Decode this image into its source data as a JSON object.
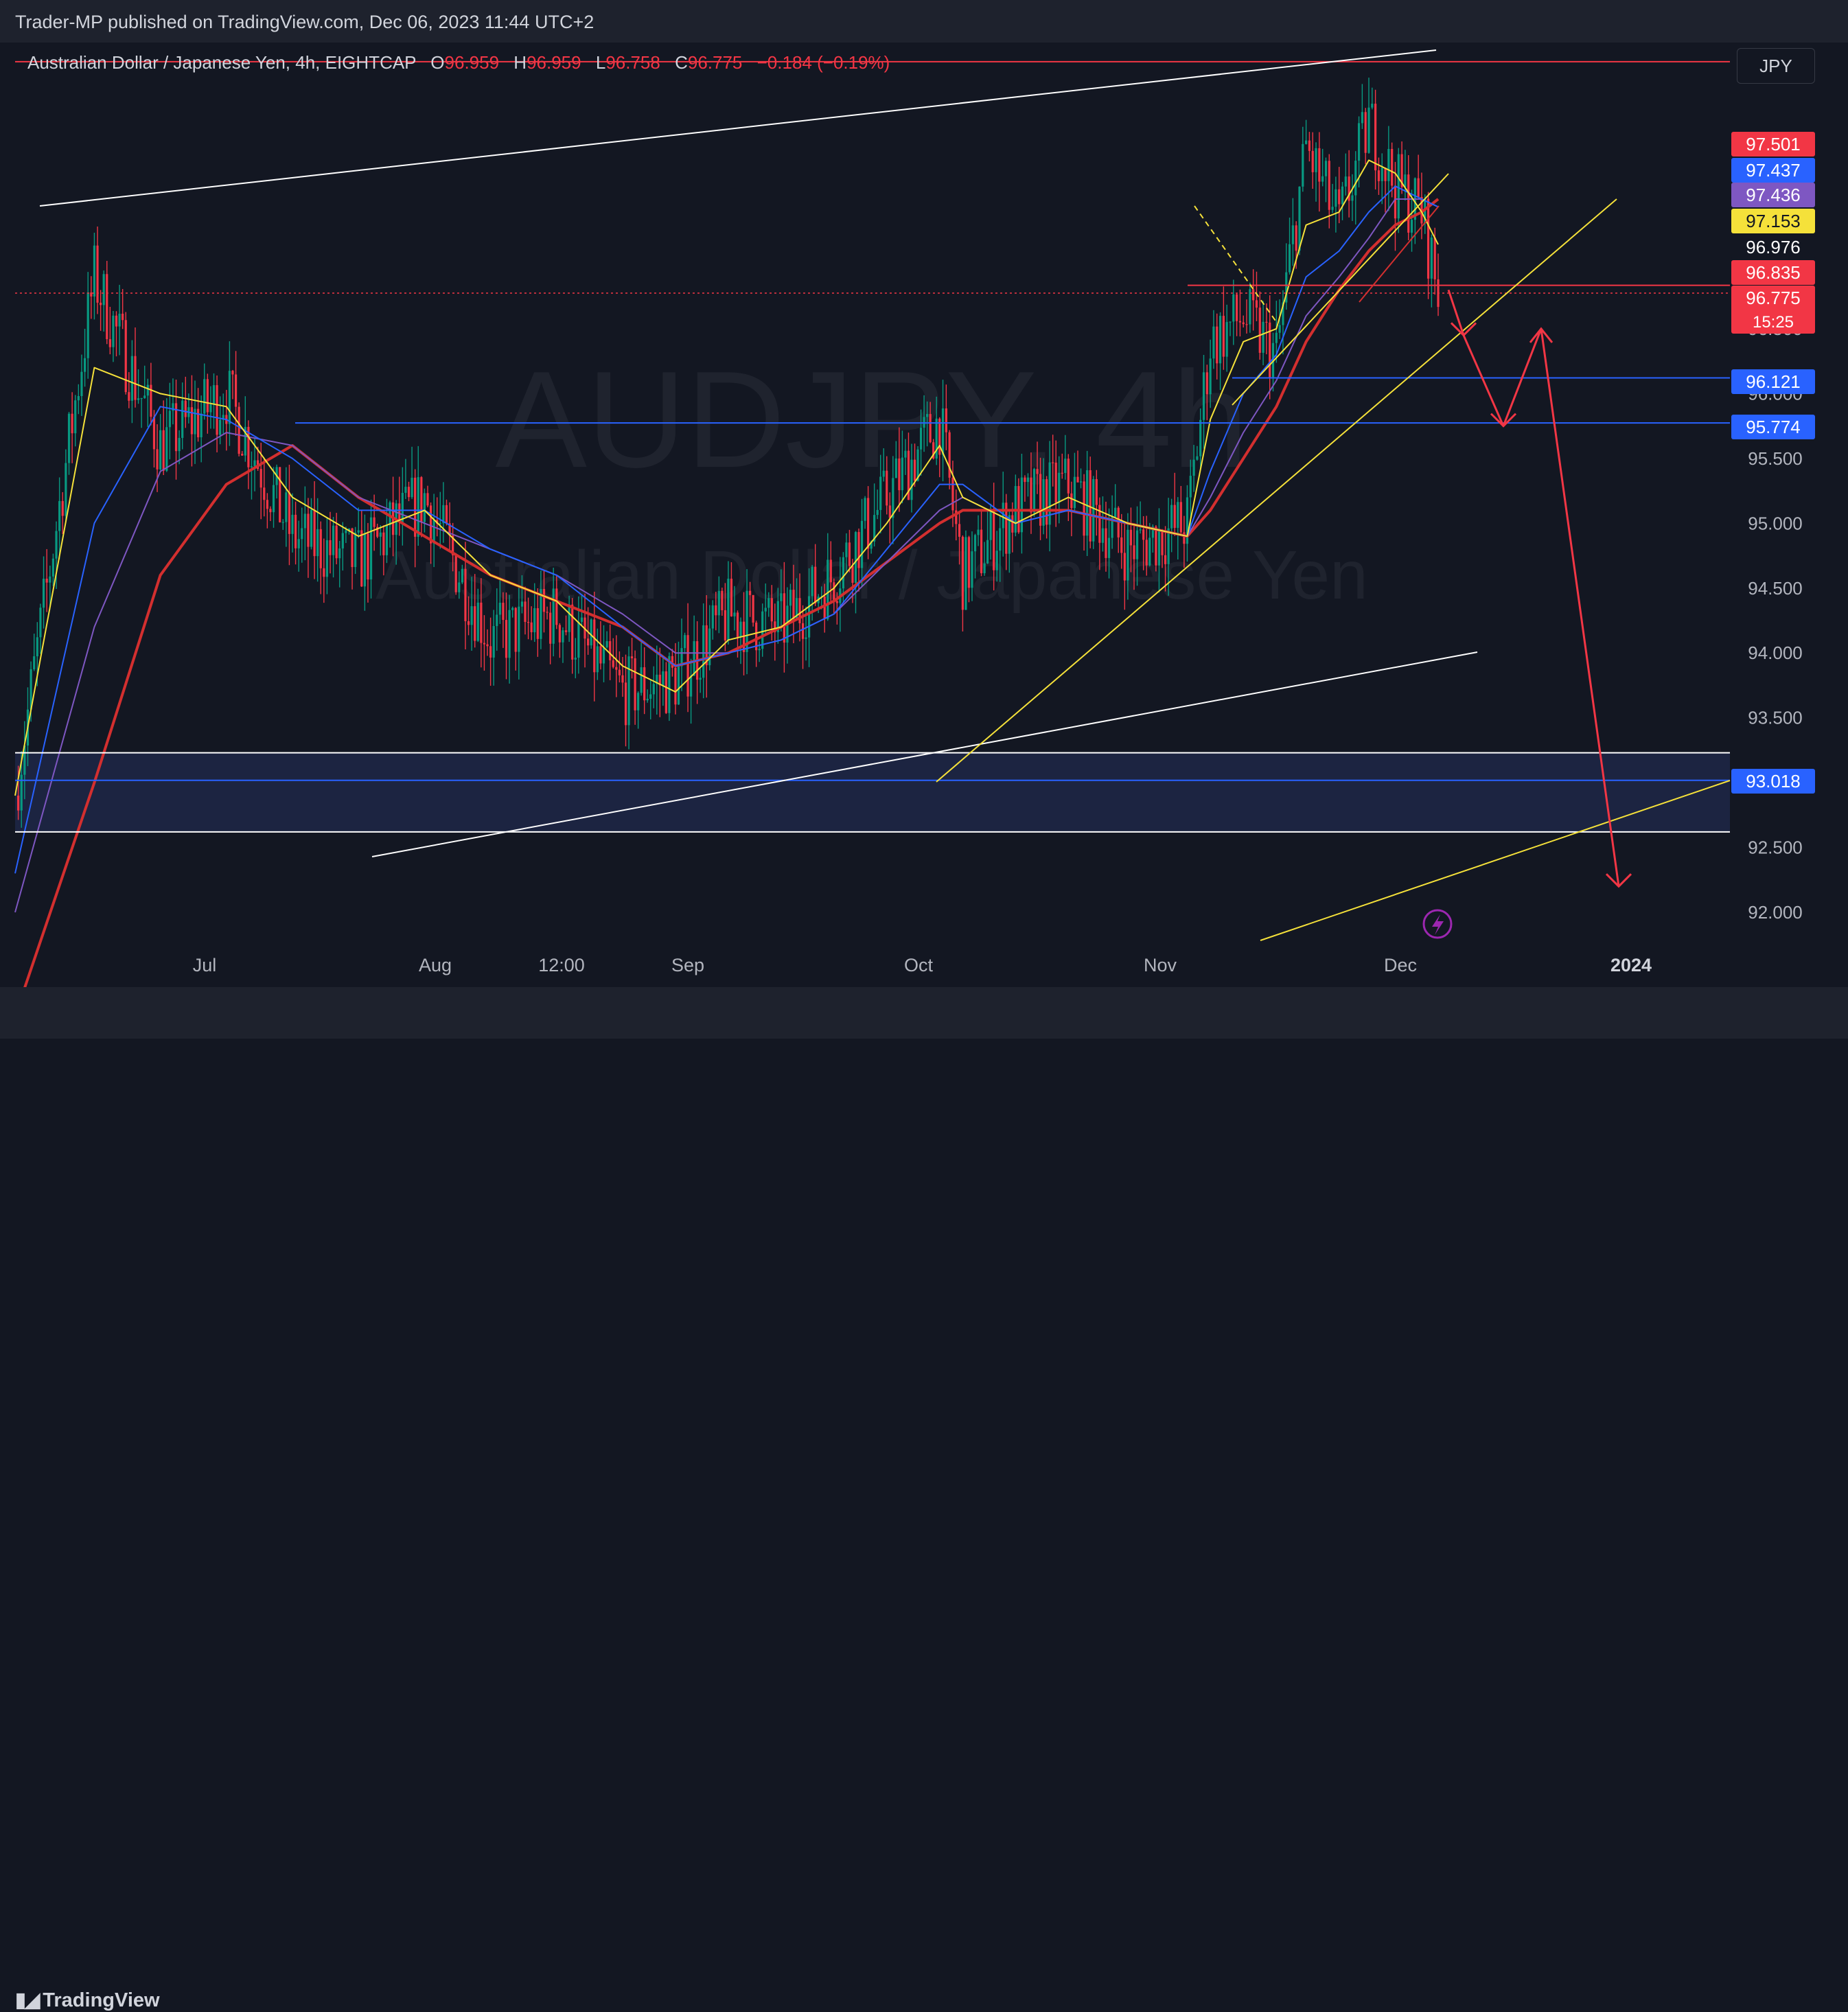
{
  "header": {
    "published": "Trader-MP published on TradingView.com, Dec 06, 2023 11:44 UTC+2"
  },
  "legend": {
    "symbol": "Australian Dollar / Japanese Yen, 4h, EIGHTCAP",
    "open_label": "O",
    "open": "96.959",
    "high_label": "H",
    "high": "96.959",
    "low_label": "L",
    "low": "96.758",
    "close_label": "C",
    "close": "96.775",
    "change": "−0.184 (−0.19%)"
  },
  "currency_button": "JPY",
  "watermark": {
    "ticker": "AUDJPY, 4h",
    "name": "Australian Dollar / Japanese Yen"
  },
  "footer": {
    "brand": "TradingView"
  },
  "colors": {
    "background": "#131722",
    "up": "#089981",
    "down": "#f23645",
    "ema_fast": "#f5e13a",
    "ema_mid": "#2962ff",
    "ema_slow": "#7e57c2",
    "ma_long": "#d32f2f",
    "support": "#2962ff",
    "trend": "#ffffff",
    "yellow_trend": "#f5e13a",
    "projection": "#f23645"
  },
  "chart_data": {
    "type": "candlestick",
    "symbol": "AUDJPY",
    "interval": "4h",
    "y_axis": {
      "ticks": [
        "92.000",
        "92.500",
        "93.000",
        "93.500",
        "94.000",
        "94.500",
        "95.000",
        "95.500",
        "96.000",
        "96.500"
      ],
      "range": [
        91.8,
        98.6
      ]
    },
    "x_axis": {
      "ticks": [
        {
          "label": "Jul",
          "bold": false
        },
        {
          "label": "Aug",
          "bold": false
        },
        {
          "label": "12:00",
          "bold": false
        },
        {
          "label": "Sep",
          "bold": false
        },
        {
          "label": "Oct",
          "bold": false
        },
        {
          "label": "Nov",
          "bold": false
        },
        {
          "label": "Dec",
          "bold": false
        },
        {
          "label": "2024",
          "bold": true
        }
      ]
    },
    "price_labels": [
      {
        "value": "97.501",
        "color": "#f23645",
        "text_color": "#ffffff"
      },
      {
        "value": "97.437",
        "color": "#2962ff",
        "text_color": "#ffffff"
      },
      {
        "value": "97.436",
        "color": "#7e57c2",
        "text_color": "#ffffff"
      },
      {
        "value": "97.153",
        "color": "#f5e13a",
        "text_color": "#131722"
      },
      {
        "value": "96.976",
        "color": "#131722",
        "text_color": "#ffffff"
      },
      {
        "value": "96.835",
        "color": "#f23645",
        "text_color": "#ffffff"
      },
      {
        "value": "96.775",
        "color": "#f23645",
        "text_color": "#ffffff",
        "countdown": "15:25"
      },
      {
        "value": "96.121",
        "color": "#2962ff",
        "text_color": "#ffffff"
      },
      {
        "value": "95.774",
        "color": "#2962ff",
        "text_color": "#ffffff"
      },
      {
        "value": "93.018",
        "color": "#2962ff",
        "text_color": "#ffffff"
      }
    ],
    "anchors": [
      {
        "t": "Jun 15",
        "close": 92.9,
        "ema20": 92.9,
        "ema50": 92.3,
        "ema100": 92.0,
        "ma200": 91.2
      },
      {
        "t": "Jun 22",
        "close": 96.9,
        "ema20": 96.2,
        "ema50": 95.0,
        "ema100": 94.2,
        "ma200": 93.0
      },
      {
        "t": "Jun 29",
        "close": 95.6,
        "ema20": 96.0,
        "ema50": 95.9,
        "ema100": 95.4,
        "ma200": 94.6
      },
      {
        "t": "Jul 6",
        "close": 96.0,
        "ema20": 95.9,
        "ema50": 95.8,
        "ema100": 95.7,
        "ma200": 95.3
      },
      {
        "t": "Jul 13",
        "close": 94.9,
        "ema20": 95.2,
        "ema50": 95.5,
        "ema100": 95.6,
        "ma200": 95.6
      },
      {
        "t": "Jul 20",
        "close": 94.7,
        "ema20": 94.9,
        "ema50": 95.1,
        "ema100": 95.2,
        "ma200": 95.2
      },
      {
        "t": "Jul 27",
        "close": 95.2,
        "ema20": 95.1,
        "ema50": 95.1,
        "ema100": 95.0,
        "ma200": 94.9
      },
      {
        "t": "Aug 3",
        "close": 94.1,
        "ema20": 94.6,
        "ema50": 94.8,
        "ema100": 94.8,
        "ma200": 94.6
      },
      {
        "t": "Aug 10",
        "close": 94.3,
        "ema20": 94.4,
        "ema50": 94.6,
        "ema100": 94.6,
        "ma200": 94.4
      },
      {
        "t": "Aug 17",
        "close": 93.7,
        "ema20": 93.9,
        "ema50": 94.2,
        "ema100": 94.3,
        "ma200": 94.2
      },
      {
        "t": "Aug 24",
        "close": 93.8,
        "ema20": 93.7,
        "ema50": 93.9,
        "ema100": 94.0,
        "ma200": 93.9
      },
      {
        "t": "Aug 31",
        "close": 94.3,
        "ema20": 94.1,
        "ema50": 94.0,
        "ema100": 94.0,
        "ma200": 94.0
      },
      {
        "t": "Sep 7",
        "close": 94.2,
        "ema20": 94.2,
        "ema50": 94.1,
        "ema100": 94.1,
        "ma200": 94.2
      },
      {
        "t": "Sep 14",
        "close": 94.6,
        "ema20": 94.5,
        "ema50": 94.3,
        "ema100": 94.3,
        "ma200": 94.4
      },
      {
        "t": "Sep 21",
        "close": 95.2,
        "ema20": 95.0,
        "ema50": 94.8,
        "ema100": 94.7,
        "ma200": 94.7
      },
      {
        "t": "Sep 28",
        "close": 95.8,
        "ema20": 95.6,
        "ema50": 95.3,
        "ema100": 95.1,
        "ma200": 95.0
      },
      {
        "t": "Oct 2",
        "close": 94.6,
        "ema20": 95.2,
        "ema50": 95.3,
        "ema100": 95.2,
        "ma200": 95.1
      },
      {
        "t": "Oct 9",
        "close": 95.1,
        "ema20": 95.0,
        "ema50": 95.0,
        "ema100": 95.0,
        "ma200": 95.1
      },
      {
        "t": "Oct 16",
        "close": 95.3,
        "ema20": 95.2,
        "ema50": 95.1,
        "ema100": 95.1,
        "ma200": 95.1
      },
      {
        "t": "Oct 23",
        "close": 94.8,
        "ema20": 95.0,
        "ema50": 95.0,
        "ema100": 95.0,
        "ma200": 95.0
      },
      {
        "t": "Oct 30",
        "close": 95.0,
        "ema20": 94.9,
        "ema50": 94.9,
        "ema100": 94.9,
        "ma200": 94.9
      },
      {
        "t": "Nov 2",
        "close": 96.4,
        "ema20": 95.8,
        "ema50": 95.4,
        "ema100": 95.2,
        "ma200": 95.1
      },
      {
        "t": "Nov 7",
        "close": 96.6,
        "ema20": 96.4,
        "ema50": 96.0,
        "ema100": 95.7,
        "ma200": 95.5
      },
      {
        "t": "Nov 12",
        "close": 96.3,
        "ema20": 96.5,
        "ema50": 96.3,
        "ema100": 96.1,
        "ma200": 95.9
      },
      {
        "t": "Nov 16",
        "close": 97.9,
        "ema20": 97.3,
        "ema50": 96.9,
        "ema100": 96.6,
        "ma200": 96.4
      },
      {
        "t": "Nov 21",
        "close": 97.3,
        "ema20": 97.4,
        "ema50": 97.1,
        "ema100": 96.9,
        "ma200": 96.8
      },
      {
        "t": "Nov 26",
        "close": 98.1,
        "ema20": 97.8,
        "ema50": 97.4,
        "ema100": 97.2,
        "ma200": 97.1
      },
      {
        "t": "Nov 30",
        "close": 97.6,
        "ema20": 97.7,
        "ema50": 97.6,
        "ema100": 97.5,
        "ma200": 97.3
      },
      {
        "t": "Dec 4",
        "close": 97.4,
        "ema20": 97.4,
        "ema50": 97.5,
        "ema100": 97.5,
        "ma200": 97.4
      },
      {
        "t": "Dec 6",
        "close": 96.78,
        "ema20": 97.15,
        "ema50": 97.44,
        "ema100": 97.44,
        "ma200": 97.5
      }
    ],
    "levels": [
      {
        "price": 98.56,
        "style": "solid",
        "color": "#f23645"
      },
      {
        "price": 96.835,
        "style": "solid",
        "color": "#f23645"
      },
      {
        "price": 96.775,
        "style": "dotted",
        "color": "#f23645"
      },
      {
        "price": 96.121,
        "style": "solid",
        "color": "#2962ff"
      },
      {
        "price": 95.774,
        "style": "solid",
        "color": "#2962ff"
      },
      {
        "price": 93.23,
        "style": "solid",
        "color": "#ffffff"
      },
      {
        "price": 93.018,
        "style": "solid",
        "color": "#2962ff"
      },
      {
        "price": 92.62,
        "style": "solid",
        "color": "#ffffff"
      }
    ],
    "projection_path": [
      96.8,
      96.45,
      95.75,
      96.5,
      92.2
    ],
    "annotations": []
  }
}
